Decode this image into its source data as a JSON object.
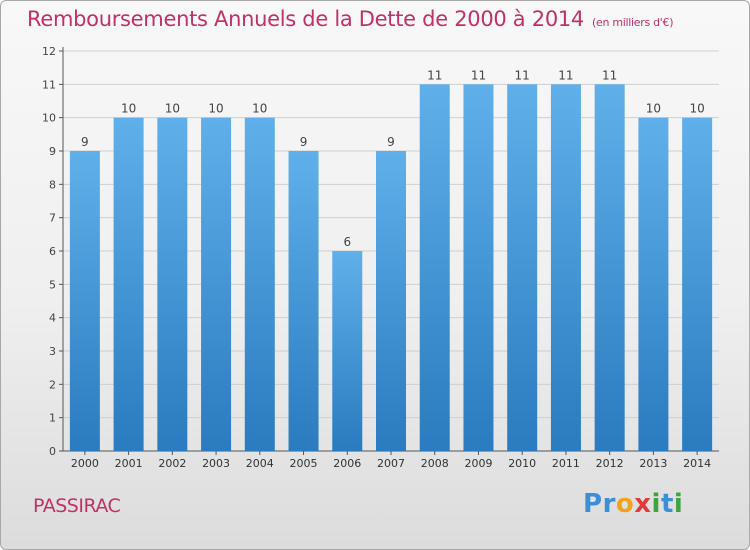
{
  "title": "Remboursements Annuels de la Dette de 2000 à 2014",
  "subtitle": "(en milliers d'€)",
  "commune": "PASSIRAC",
  "logo": {
    "text": "Proxiti",
    "letters": [
      {
        "char": "P",
        "color": "#3b8fd6"
      },
      {
        "char": "r",
        "color": "#3b8fd6"
      },
      {
        "char": "o",
        "color": "#f2a21a"
      },
      {
        "char": "x",
        "color": "#e23b3b"
      },
      {
        "char": "i",
        "color": "#3fa33f"
      },
      {
        "char": "t",
        "color": "#3b8fd6"
      },
      {
        "char": "i",
        "color": "#3fa33f"
      }
    ]
  },
  "colors": {
    "accent": "#c0306a",
    "bar_top": "#5fb0ea",
    "bar_bottom": "#2a7bbf",
    "grid": "#cfcfcf"
  },
  "chart_data": {
    "type": "bar",
    "title": "Remboursements Annuels de la Dette de 2000 à 2014",
    "subtitle": "(en milliers d'€)",
    "xlabel": "",
    "ylabel": "",
    "categories": [
      "2000",
      "2001",
      "2002",
      "2003",
      "2004",
      "2005",
      "2006",
      "2007",
      "2008",
      "2009",
      "2010",
      "2011",
      "2012",
      "2013",
      "2014"
    ],
    "values": [
      9,
      10,
      10,
      10,
      10,
      9,
      6,
      9,
      11,
      11,
      11,
      11,
      11,
      10,
      10
    ],
    "ylim": [
      0,
      12
    ],
    "yticks": [
      0,
      1,
      2,
      3,
      4,
      5,
      6,
      7,
      8,
      9,
      10,
      11,
      12
    ],
    "grid": true,
    "data_labels": true
  }
}
